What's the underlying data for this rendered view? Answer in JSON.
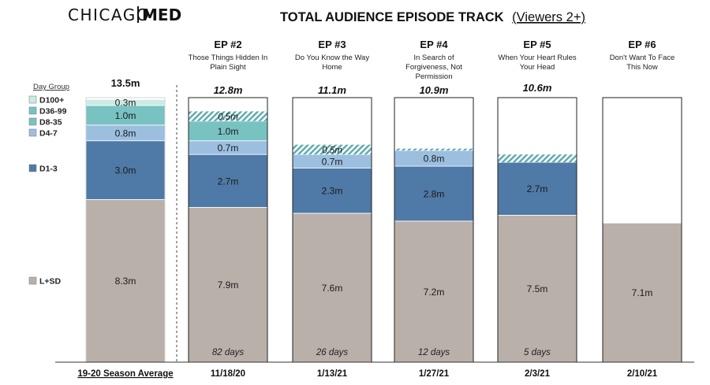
{
  "header": {
    "logo_left": "CHICAGO",
    "logo_right": "MED",
    "title_main": "TOTAL AUDIENCE EPISODE TRACK",
    "title_paren": "(Viewers 2+)"
  },
  "legend": {
    "title": "Day Group",
    "items": [
      {
        "key": "d100",
        "label": "D100+"
      },
      {
        "key": "d36",
        "label": "D36-99"
      },
      {
        "key": "d8",
        "label": "D8-35"
      },
      {
        "key": "d4",
        "label": "D4-7"
      },
      {
        "key": "d1",
        "label": "D1-3"
      },
      {
        "key": "lsd",
        "label": "L+SD"
      }
    ]
  },
  "colors": {
    "lsd": "#bab0aa",
    "d1": "#4f79a6",
    "d4": "#9cbfe0",
    "d8": "#78c2c2",
    "d36": "#78c2c2",
    "d100": "#c9ece4",
    "hatch": "#5ba9ad",
    "border": "#222222"
  },
  "chart_data": {
    "type": "bar",
    "stacked": true,
    "units": "millions of viewers (Viewers 2+)",
    "series_order": [
      "lsd",
      "d1",
      "d4",
      "d8",
      "d36",
      "d100"
    ],
    "ylim": [
      0,
      13.5
    ],
    "bars": [
      {
        "key": "avg",
        "x_label": "19-20 Season Average",
        "ep_label": "",
        "ep_title": "",
        "total": "13.5m",
        "days": "",
        "segments": [
          {
            "series": "lsd",
            "value": 8.3,
            "label": "8.3m"
          },
          {
            "series": "d1",
            "value": 3.0,
            "label": "3.0m"
          },
          {
            "series": "d4",
            "value": 0.8,
            "label": "0.8m"
          },
          {
            "series": "d8",
            "value": 1.0,
            "label": "1.0m"
          },
          {
            "series": "d100",
            "value": 0.3,
            "label": "0.3m"
          }
        ]
      },
      {
        "key": "ep2",
        "x_label": "11/18/20",
        "ep_label": "EP #2",
        "ep_title": "Those Things Hidden In Plain Sight",
        "total": "12.8m",
        "days": "82 days",
        "segments": [
          {
            "series": "lsd",
            "value": 7.9,
            "label": "7.9m"
          },
          {
            "series": "d1",
            "value": 2.7,
            "label": "2.7m"
          },
          {
            "series": "d4",
            "value": 0.7,
            "label": "0.7m"
          },
          {
            "series": "d8",
            "value": 1.0,
            "label": "1.0m"
          },
          {
            "series": "d36",
            "value": 0.5,
            "label": "0.5m",
            "projected": true
          }
        ]
      },
      {
        "key": "ep3",
        "x_label": "1/13/21",
        "ep_label": "EP #3",
        "ep_title": "Do You Know the Way Home",
        "total": "11.1m",
        "days": "26 days",
        "segments": [
          {
            "series": "lsd",
            "value": 7.6,
            "label": "7.6m"
          },
          {
            "series": "d1",
            "value": 2.3,
            "label": "2.3m"
          },
          {
            "series": "d4",
            "value": 0.7,
            "label": "0.7m"
          },
          {
            "series": "d8",
            "value": 0.5,
            "label": "0.5m",
            "projected": true
          }
        ]
      },
      {
        "key": "ep4",
        "x_label": "1/27/21",
        "ep_label": "EP #4",
        "ep_title": "In Search of Forgiveness, Not Permission",
        "total": "10.9m",
        "days": "12 days",
        "segments": [
          {
            "series": "lsd",
            "value": 7.2,
            "label": "7.2m"
          },
          {
            "series": "d1",
            "value": 2.8,
            "label": "2.8m"
          },
          {
            "series": "d4",
            "value": 0.8,
            "label": "0.8m"
          },
          {
            "series": "d8",
            "value": 0.1,
            "label": "",
            "projected": true
          }
        ]
      },
      {
        "key": "ep5",
        "x_label": "2/3/21",
        "ep_label": "EP #5",
        "ep_title": "When Your Heart Rules Your Head",
        "total": "10.6m",
        "days": "5 days",
        "segments": [
          {
            "series": "lsd",
            "value": 7.5,
            "label": "7.5m"
          },
          {
            "series": "d1",
            "value": 2.7,
            "label": "2.7m"
          },
          {
            "series": "d4",
            "value": 0.4,
            "label": "",
            "projected": true
          }
        ]
      },
      {
        "key": "ep6",
        "x_label": "2/10/21",
        "ep_label": "EP #6",
        "ep_title": "Don't Want To Face This Now",
        "total": "",
        "days": "",
        "segments": [
          {
            "series": "lsd",
            "value": 7.1,
            "label": "7.1m"
          }
        ]
      }
    ]
  }
}
